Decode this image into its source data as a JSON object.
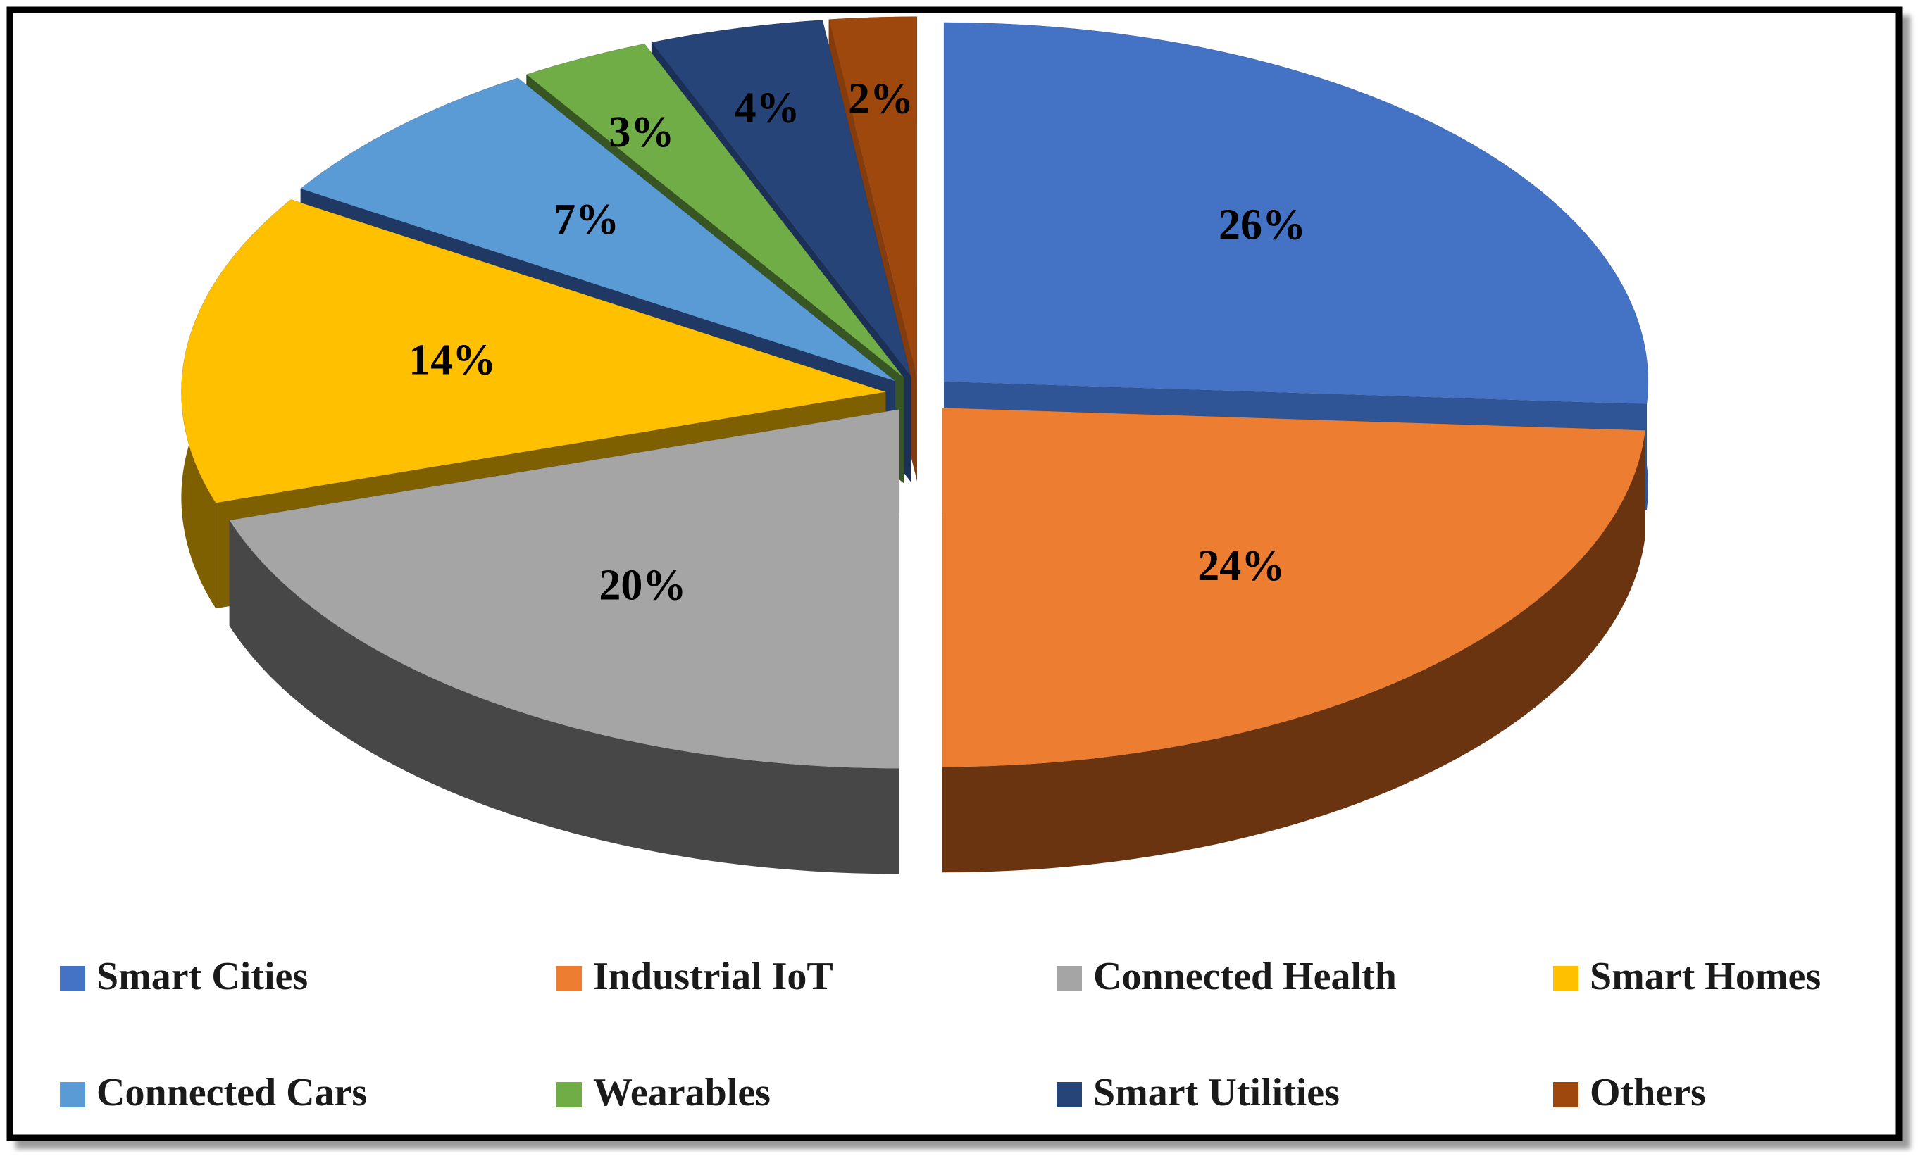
{
  "chart_data": {
    "type": "pie",
    "title": "",
    "categories": [
      "Smart Cities",
      "Industrial IoT",
      "Connected Health",
      "Smart Homes",
      "Connected Cars",
      "Wearables",
      "Smart Utilities",
      "Others"
    ],
    "values": [
      26,
      24,
      20,
      14,
      7,
      3,
      4,
      2
    ],
    "data_labels": [
      "26%",
      "24%",
      "20%",
      "14%",
      "7%",
      "3%",
      "4%",
      "2%"
    ],
    "colors": [
      "#4472C4",
      "#ED7D31",
      "#A5A5A5",
      "#FFC000",
      "#5B9BD5",
      "#70AD47",
      "#264478",
      "#9E480E"
    ],
    "side_colors": [
      "#2F5597",
      "#6B3410",
      "#474747",
      "#7F6000",
      "#203864",
      "#375623",
      "#1B3057",
      "#843C0C"
    ],
    "style": "3d-exploded",
    "legend_position": "bottom",
    "legend_columns": 4,
    "grid": false
  }
}
